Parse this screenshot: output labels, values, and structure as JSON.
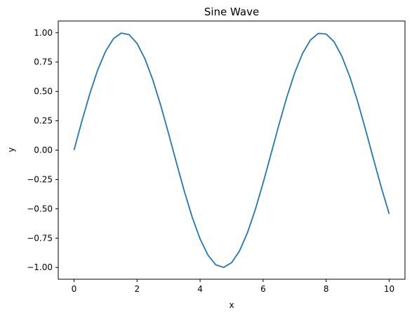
{
  "chart_data": {
    "type": "line",
    "title": "Sine Wave",
    "xlabel": "x",
    "ylabel": "y",
    "xlim": [
      -0.5,
      10.5
    ],
    "ylim": [
      -1.1,
      1.1
    ],
    "grid": false,
    "x_ticks": [
      0,
      2,
      4,
      6,
      8,
      10
    ],
    "x_tick_labels": [
      "0",
      "2",
      "4",
      "6",
      "8",
      "10"
    ],
    "y_ticks": [
      1.0,
      0.75,
      0.5,
      0.25,
      0.0,
      -0.25,
      -0.5,
      -0.75,
      -1.0
    ],
    "y_tick_labels": [
      "1.00",
      "0.75",
      "0.50",
      "0.25",
      "0.00",
      "−0.25",
      "−0.50",
      "−0.75",
      "−1.00"
    ],
    "series": [
      {
        "color": "#1f77b4",
        "x": [
          0,
          0.25,
          0.5,
          0.75,
          1.0,
          1.25,
          1.5,
          1.75,
          2.0,
          2.25,
          2.5,
          2.75,
          3.0,
          3.25,
          3.5,
          3.75,
          4.0,
          4.25,
          4.5,
          4.75,
          5.0,
          5.25,
          5.5,
          5.75,
          6.0,
          6.25,
          6.5,
          6.75,
          7.0,
          7.25,
          7.5,
          7.75,
          8.0,
          8.25,
          8.5,
          8.75,
          9.0,
          9.25,
          9.5,
          9.75,
          10.0
        ],
        "y": [
          0.0,
          0.247,
          0.479,
          0.682,
          0.841,
          0.949,
          0.997,
          0.984,
          0.909,
          0.778,
          0.598,
          0.382,
          0.141,
          -0.108,
          -0.351,
          -0.572,
          -0.757,
          -0.895,
          -0.978,
          -0.999,
          -0.959,
          -0.859,
          -0.706,
          -0.508,
          -0.279,
          -0.033,
          0.215,
          0.45,
          0.657,
          0.823,
          0.938,
          0.994,
          0.989,
          0.923,
          0.798,
          0.625,
          0.412,
          0.174,
          -0.075,
          -0.319,
          -0.544
        ]
      }
    ]
  }
}
